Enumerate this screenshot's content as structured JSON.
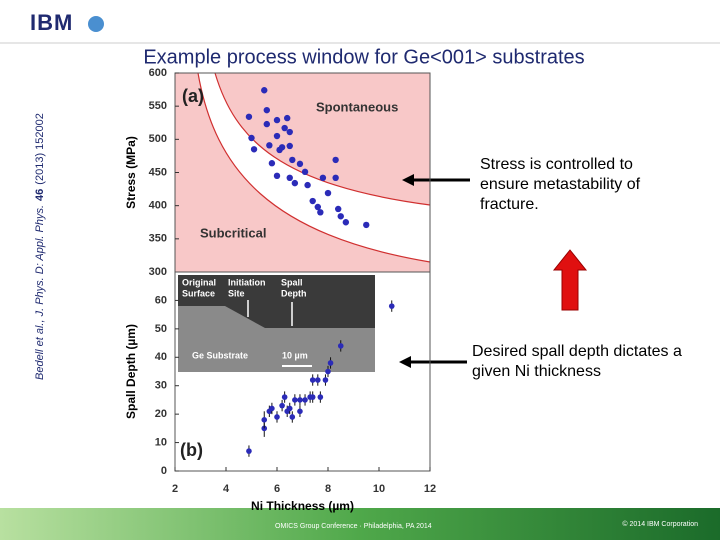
{
  "header": {
    "logo": "IBM",
    "title": "Example process window for Ge<001> substrates"
  },
  "citation": [
    "Bedell et al., J. Phys. D: Appl. Phys.",
    "46",
    "(2013) 152002"
  ],
  "chart_data": [
    {
      "type": "scatter",
      "y_label": "Stress (MPa)",
      "panel_label": "(a)",
      "region_labels": [
        "Spontaneous",
        "Subcritical"
      ],
      "color": "#2b2bb8",
      "x": [
        4.9,
        5.0,
        5.1,
        5.5,
        5.6,
        5.6,
        5.7,
        5.8,
        6.0,
        6.0,
        6.1,
        6.2,
        6.3,
        6.4,
        6.5,
        6.5,
        6.6,
        6.7,
        6.5,
        6.0,
        6.9,
        7.1,
        7.2,
        7.4,
        7.6,
        7.7,
        7.8,
        8.0,
        8.3,
        8.3,
        8.4,
        8.5,
        8.7,
        9.5
      ],
      "values": [
        534,
        502,
        485,
        574,
        544,
        523,
        491,
        464,
        529,
        505,
        484,
        488,
        517,
        532,
        511,
        490,
        469,
        434,
        442,
        445,
        463,
        451,
        431,
        407,
        398,
        390,
        442,
        419,
        469,
        442,
        395,
        384,
        375,
        371
      ],
      "xlim": [
        2,
        12
      ],
      "ylim": [
        300,
        600
      ],
      "yticks": [
        300,
        350,
        400,
        450,
        500,
        550,
        600
      ]
    },
    {
      "type": "errorbar",
      "y_label": "Spall Depth (µm)",
      "x_label": "Ni Thickness (µm)",
      "panel_label": "(b)",
      "color": "#2b2bb8",
      "inset_labels": [
        [
          "Original",
          "Surface"
        ],
        [
          "Initiation",
          "Site"
        ],
        [
          "Spall",
          "Depth"
        ],
        [
          "Ge Substrate"
        ],
        [
          "10 µm"
        ]
      ],
      "x": [
        4.9,
        5.5,
        5.5,
        5.7,
        5.8,
        6.0,
        6.2,
        6.3,
        6.4,
        6.5,
        6.6,
        6.7,
        6.9,
        6.9,
        7.1,
        7.3,
        7.4,
        7.4,
        7.6,
        7.7,
        7.9,
        8.0,
        8.1,
        8.5,
        10.5
      ],
      "values": [
        7,
        15,
        18,
        21,
        22,
        19,
        23,
        26,
        21,
        22,
        19,
        25,
        21,
        25,
        25,
        26,
        32,
        26,
        32,
        26,
        32,
        35,
        38,
        44,
        58
      ],
      "errors": [
        2,
        3,
        3,
        2,
        2,
        2,
        2,
        2,
        2,
        2,
        2,
        2,
        2,
        2,
        2,
        2,
        2,
        2,
        2,
        2,
        2,
        2,
        2,
        2,
        2
      ],
      "xlim": [
        2,
        12
      ],
      "ylim": [
        0,
        70
      ],
      "xticks": [
        2,
        4,
        6,
        8,
        10,
        12
      ],
      "yticks": [
        0,
        10,
        20,
        30,
        40,
        50,
        60
      ]
    }
  ],
  "annotations": [
    "Stress is controlled to ensure metastability of fracture.",
    "Desired spall depth dictates a given Ni thickness"
  ],
  "footer": {
    "event": "OMICS Group Conference · Philadelphia, PA 2014",
    "copyright": "© 2014 IBM Corporation"
  }
}
